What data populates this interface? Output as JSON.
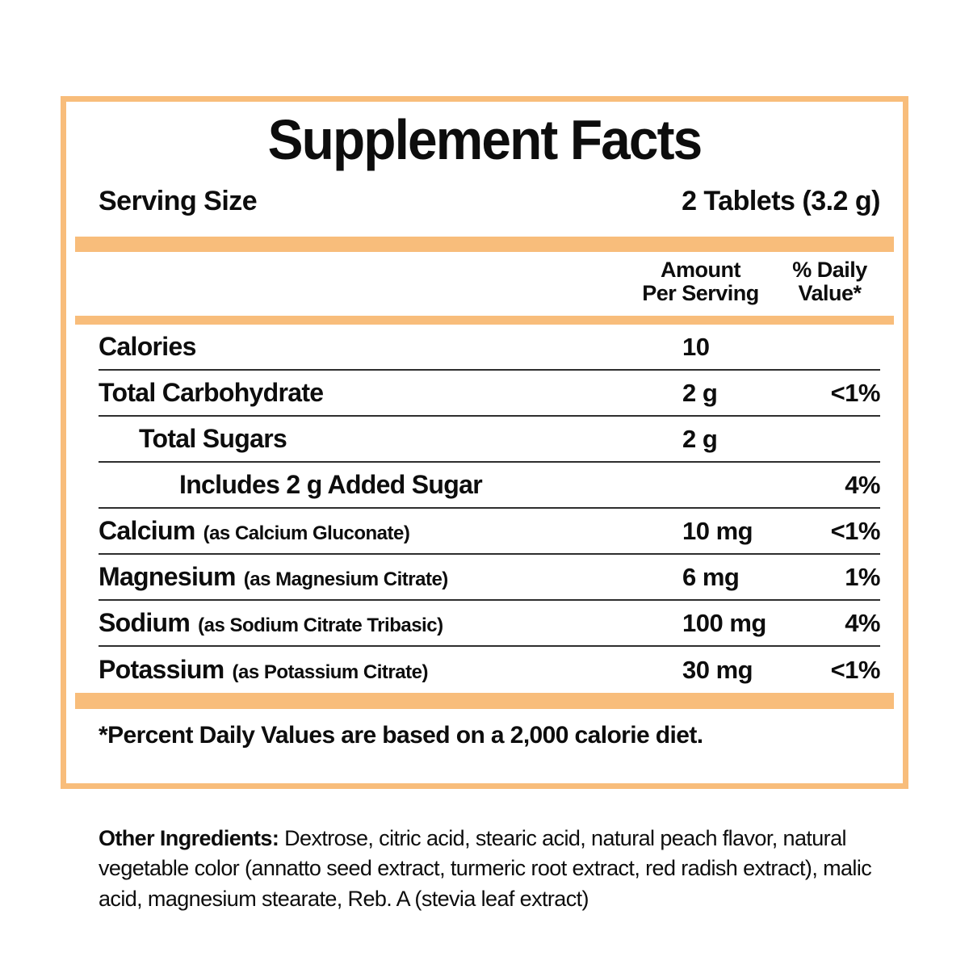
{
  "panel": {
    "title": "Supplement Facts",
    "serving": {
      "label": "Serving Size",
      "value": "2 Tablets (3.2 g)"
    },
    "columns": {
      "amount_line1": "Amount",
      "amount_line2": "Per Serving",
      "dv_line1": "% Daily",
      "dv_line2": "Value*"
    },
    "rows": [
      {
        "label": "Calories",
        "sub": "",
        "amount": "10",
        "dv": ""
      },
      {
        "label": "Total Carbohydrate",
        "sub": "",
        "amount": "2 g",
        "dv": "<1%"
      },
      {
        "label": "Total Sugars",
        "sub": "",
        "amount": "2 g",
        "dv": ""
      },
      {
        "label": "Includes 2 g Added Sugar",
        "sub": "",
        "amount": "",
        "dv": "4%"
      },
      {
        "label": "Calcium",
        "sub": "(as Calcium Gluconate)",
        "amount": "10 mg",
        "dv": "<1%"
      },
      {
        "label": "Magnesium",
        "sub": "(as Magnesium Citrate)",
        "amount": "6 mg",
        "dv": "1%"
      },
      {
        "label": "Sodium",
        "sub": "(as Sodium Citrate Tribasic)",
        "amount": "100 mg",
        "dv": "4%"
      },
      {
        "label": "Potassium",
        "sub": "(as Potassium Citrate)",
        "amount": "30 mg",
        "dv": "<1%"
      }
    ],
    "footnote": "*Percent Daily Values are based on a 2,000 calorie diet.",
    "colors": {
      "accent": "#F8BD7B",
      "rule": "#2e2e2e",
      "text": "#0d0d0d"
    }
  },
  "other_ingredients": {
    "label": "Other Ingredients:",
    "text": " Dextrose, citric acid, stearic acid, natural peach flavor, natural vegetable color (annatto seed extract, turmeric root extract, red radish extract), malic acid, magnesium stearate, Reb. A (stevia leaf extract)"
  }
}
